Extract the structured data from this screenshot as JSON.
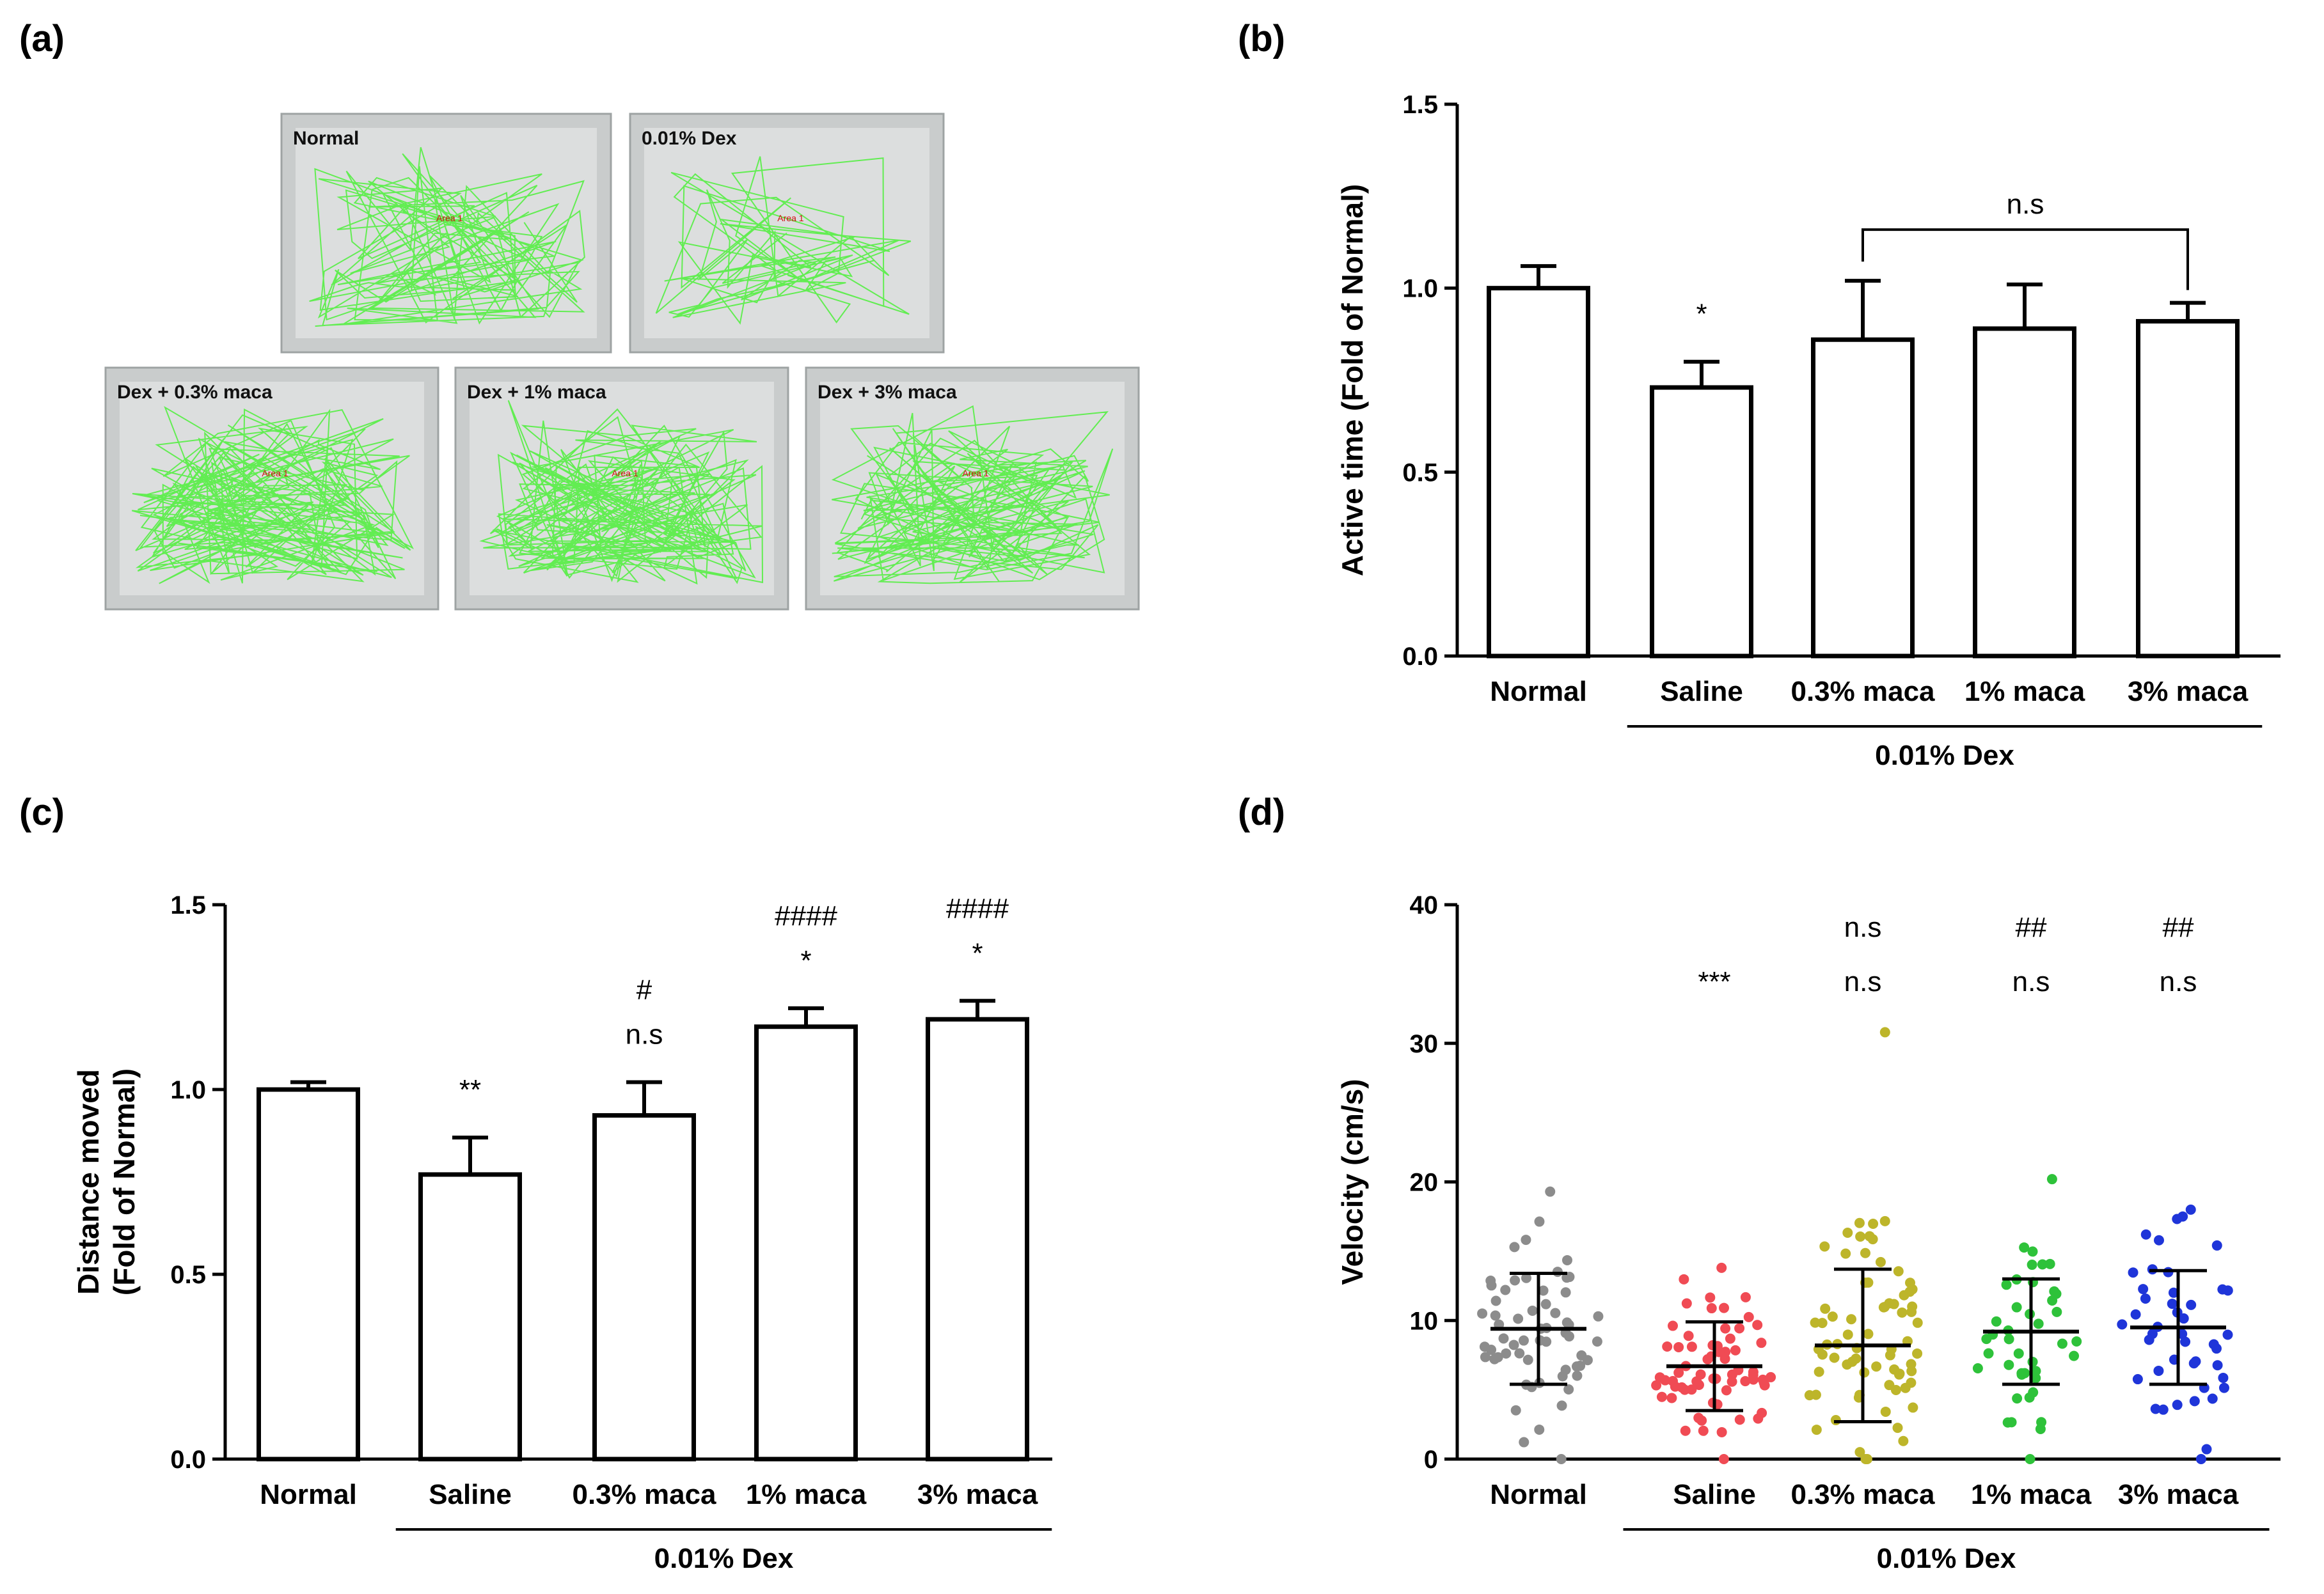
{
  "panel_labels": [
    "(a)",
    "(b)",
    "(c)",
    "(d)"
  ],
  "panel_a": {
    "photos": [
      {
        "label": "Normal",
        "arena": "Area 1",
        "density": 120
      },
      {
        "label": "0.01% Dex",
        "arena": "Area 1",
        "density": 70
      },
      {
        "label": "Dex + 0.3% maca",
        "arena": "Area 1",
        "density": 180
      },
      {
        "label": "Dex + 1% maca",
        "arena": "Area 1",
        "density": 190
      },
      {
        "label": "Dex + 3% maca",
        "arena": "Area 1",
        "density": 170
      }
    ]
  },
  "group_label": "0.01% Dex",
  "chart_data": [
    {
      "id": "b",
      "type": "bar",
      "categories": [
        "Normal",
        "Saline",
        "0.3% maca",
        "1% maca",
        "3% maca"
      ],
      "values": [
        1.0,
        0.73,
        0.86,
        0.89,
        0.91
      ],
      "errors": [
        0.06,
        0.07,
        0.16,
        0.12,
        0.05
      ],
      "ylabel": "Active time (Fold of Normal)",
      "ylim": [
        0,
        1.5
      ],
      "yticks": [
        "0.0",
        "0.5",
        "1.0",
        "1.5"
      ],
      "annotations": [
        [
          "",
          ""
        ],
        [
          "*",
          ""
        ],
        [
          "",
          ""
        ],
        [
          "",
          ""
        ],
        [
          "",
          ""
        ]
      ],
      "bracket": {
        "from": 2,
        "to": 4,
        "label": "n.s"
      },
      "group": {
        "from": 1,
        "to": 4
      }
    },
    {
      "id": "c",
      "type": "bar",
      "categories": [
        "Normal",
        "Saline",
        "0.3% maca",
        "1% maca",
        "3% maca"
      ],
      "values": [
        1.0,
        0.77,
        0.93,
        1.17,
        1.19
      ],
      "errors": [
        0.02,
        0.1,
        0.09,
        0.05,
        0.05
      ],
      "ylabel": "Distance moved",
      "ylabel2": "(Fold of Normal)",
      "ylim": [
        0,
        1.5
      ],
      "yticks": [
        "0.0",
        "0.5",
        "1.0",
        "1.5"
      ],
      "annotations": [
        [
          "",
          ""
        ],
        [
          "**",
          ""
        ],
        [
          "n.s",
          "#"
        ],
        [
          "*",
          "####"
        ],
        [
          "*",
          "####"
        ]
      ],
      "group": {
        "from": 1,
        "to": 4
      }
    },
    {
      "id": "d",
      "type": "scatter",
      "categories": [
        "Normal",
        "Saline",
        "0.3% maca",
        "1% maca",
        "3% maca"
      ],
      "series_colors": [
        "#8c8c8c",
        "#f04b54",
        "#bdb52a",
        "#2ec23a",
        "#1f35d9"
      ],
      "n_points": [
        60,
        66,
        72,
        42,
        44
      ],
      "means": [
        9.4,
        6.7,
        8.2,
        9.2,
        9.5
      ],
      "sd": [
        4.0,
        3.2,
        5.5,
        3.8,
        4.1
      ],
      "max": [
        19.3,
        13.8,
        30.8,
        20.2,
        18.0
      ],
      "ylabel": "Velocity (cm/s)",
      "ylim": [
        0,
        40
      ],
      "yticks": [
        "0",
        "10",
        "20",
        "30",
        "40"
      ],
      "annotations": [
        [
          "",
          ""
        ],
        [
          "***",
          ""
        ],
        [
          "n.s",
          "n.s"
        ],
        [
          "n.s",
          "##"
        ],
        [
          "n.s",
          "##"
        ]
      ],
      "group": {
        "from": 1,
        "to": 4
      }
    }
  ]
}
